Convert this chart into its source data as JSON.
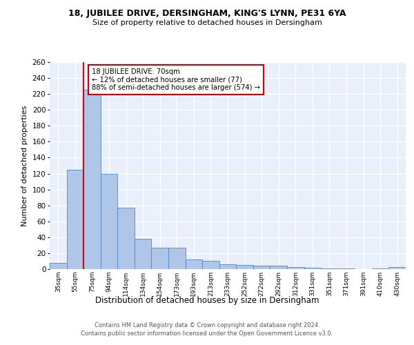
{
  "title_line1": "18, JUBILEE DRIVE, DERSINGHAM, KING'S LYNN, PE31 6YA",
  "title_line2": "Size of property relative to detached houses in Dersingham",
  "xlabel": "Distribution of detached houses by size in Dersingham",
  "ylabel": "Number of detached properties",
  "bar_labels": [
    "35sqm",
    "55sqm",
    "75sqm",
    "94sqm",
    "114sqm",
    "134sqm",
    "154sqm",
    "173sqm",
    "193sqm",
    "213sqm",
    "233sqm",
    "252sqm",
    "272sqm",
    "292sqm",
    "312sqm",
    "331sqm",
    "351sqm",
    "371sqm",
    "391sqm",
    "410sqm",
    "430sqm"
  ],
  "bar_values": [
    8,
    125,
    225,
    120,
    77,
    38,
    27,
    27,
    12,
    10,
    6,
    5,
    4,
    4,
    3,
    2,
    1,
    1,
    0,
    1,
    3
  ],
  "bar_color": "#aec6e8",
  "bar_edge_color": "#4a86c8",
  "background_color": "#eaf0fb",
  "grid_color": "#ffffff",
  "annotation_text": "18 JUBILEE DRIVE: 70sqm\n← 12% of detached houses are smaller (77)\n88% of semi-detached houses are larger (574) →",
  "annotation_box_color": "#ffffff",
  "annotation_box_edge": "#cc0000",
  "red_line_color": "#dd0000",
  "ylim": [
    0,
    260
  ],
  "yticks": [
    0,
    20,
    40,
    60,
    80,
    100,
    120,
    140,
    160,
    180,
    200,
    220,
    240,
    260
  ],
  "footer_line1": "Contains HM Land Registry data © Crown copyright and database right 2024.",
  "footer_line2": "Contains public sector information licensed under the Open Government Licence v3.0."
}
